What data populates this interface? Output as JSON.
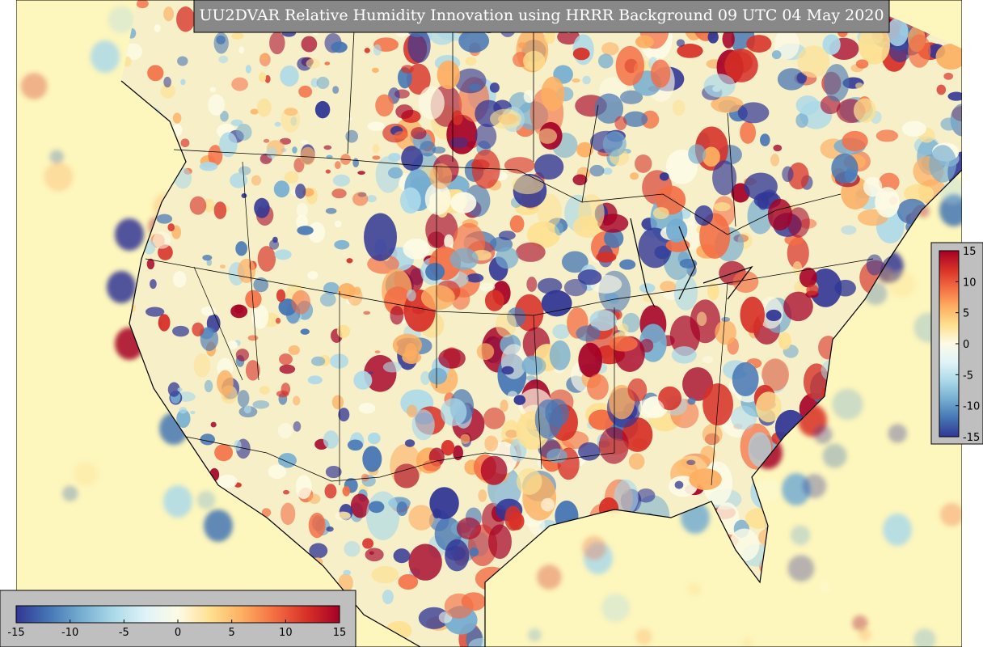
{
  "title": "UU2DVAR Relative Humidity Innovation using HRRR Background 09 UTC 04 May 2020",
  "colors": [
    "#313695",
    "#4575b4",
    "#74add1",
    "#abd9e9",
    "#e0f3f8",
    "#fdfbe6",
    "#fee090",
    "#fdae61",
    "#f46d43",
    "#d73027",
    "#a50026"
  ],
  "colorbar_bottom": {
    "range": [
      -15,
      15
    ],
    "ticks": [
      -15,
      -10,
      -5,
      0,
      5,
      10,
      15
    ]
  },
  "colorbar_right": {
    "range": [
      -15,
      15
    ],
    "ticks": [
      -15,
      -10,
      -5,
      0,
      5,
      10,
      15
    ]
  }
}
